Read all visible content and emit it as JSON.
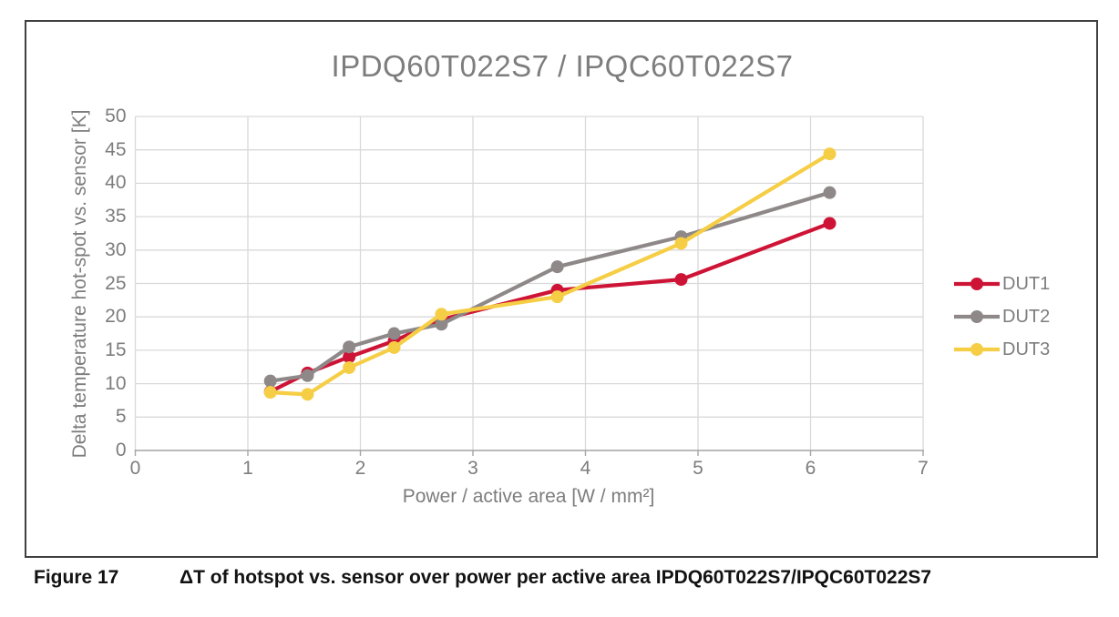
{
  "chart_data": {
    "type": "line",
    "title": "IPDQ60T022S7 / IPQC60T022S7",
    "xlabel": "Power / active area [W / mm²]",
    "ylabel": "Delta temperature hot-spot vs. sensor [K]",
    "xlim": [
      0,
      7
    ],
    "ylim": [
      0,
      50
    ],
    "x_ticks": [
      0,
      1,
      2,
      3,
      4,
      5,
      6,
      7
    ],
    "y_ticks": [
      0,
      5,
      10,
      15,
      20,
      25,
      30,
      35,
      40,
      45,
      50
    ],
    "grid": true,
    "legend_position": "right",
    "x": [
      1.2,
      1.53,
      1.9,
      2.3,
      2.72,
      3.75,
      4.85,
      6.17
    ],
    "series": [
      {
        "name": "DUT1",
        "color": "#ce1436",
        "values": [
          8.8,
          11.6,
          14.0,
          16.4,
          19.6,
          24.0,
          25.6,
          34.0
        ]
      },
      {
        "name": "DUT2",
        "color": "#8e8888",
        "values": [
          10.4,
          11.2,
          15.5,
          17.5,
          18.9,
          27.5,
          32.0,
          38.6
        ]
      },
      {
        "name": "DUT3",
        "color": "#f6ce45",
        "values": [
          8.7,
          8.4,
          12.4,
          15.4,
          20.4,
          23.0,
          31.0,
          44.4
        ]
      }
    ],
    "colors": {
      "gridline": "#d9d9d9",
      "axis_line": "#a6a6a6",
      "text_gray": "#7d7d7d"
    }
  },
  "caption": {
    "label": "Figure 17",
    "text": "ΔT of hotspot vs. sensor over power per active area IPDQ60T022S7/IPQC60T022S7"
  }
}
